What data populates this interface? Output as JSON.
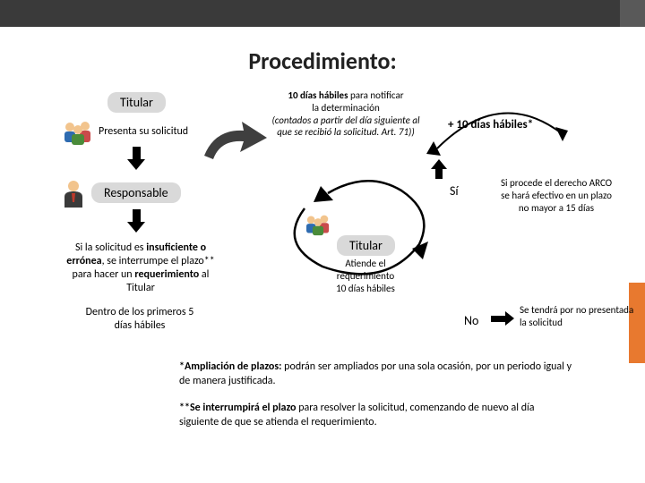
{
  "page": {
    "title": "Procedimiento:",
    "colors": {
      "topbar": "#3a3a3a",
      "topbar_accent": "#595959",
      "sidebar": "#e8792f",
      "badge_bg": "#d9d9d9",
      "arrow": "#000000",
      "big_arrow": "#3f3f3f"
    }
  },
  "titular1": {
    "badge": "Titular",
    "presents": "Presenta su solicitud"
  },
  "responsable": {
    "badge": "Responsable",
    "insufficient_html": "Si la solicitud es <b>insuficiente o errónea</b>, se interrumpe el plazo** para hacer un <b>requerimiento</b> al Titular",
    "insufficient_plain": "Si la solicitud es insuficiente o errónea, se interrumpe el plazo** para hacer un requerimiento al Titular",
    "dentro": "Dentro de los primeros 5 días hábiles"
  },
  "notice": {
    "line1_bold": "10 días hábiles",
    "line1_rest": " para notificar",
    "line2": "la determinación",
    "line3": "(contados a partir del día siguiente al que se recibió la solicitud. Art. 71))"
  },
  "extension": {
    "plus_label": "+  10 días hábiles*"
  },
  "decision": {
    "yes": "Sí",
    "no": "No",
    "yes_text": "Si procede el derecho ARCO se hará efectivo en un plazo no mayor a 15 días",
    "no_text": "Se tendrá por no presentada la solicitud"
  },
  "titular2": {
    "badge": "Titular",
    "line1": "Atiende el",
    "line2": "requerimiento",
    "line3": "10 días hábiles"
  },
  "footnotes": {
    "f1_bold": "*Ampliación de plazos:",
    "f1_rest": " podrán ser ampliados por una sola ocasión, por un periodo igual y de manera justificada.",
    "f2_bold": "**Se interrumpirá el plazo",
    "f2_rest": " para resolver la solicitud, comenzando de nuevo al día siguiente de que se atienda el requerimiento."
  },
  "icons": {
    "people": "group-icon",
    "manager": "businessman-icon"
  }
}
